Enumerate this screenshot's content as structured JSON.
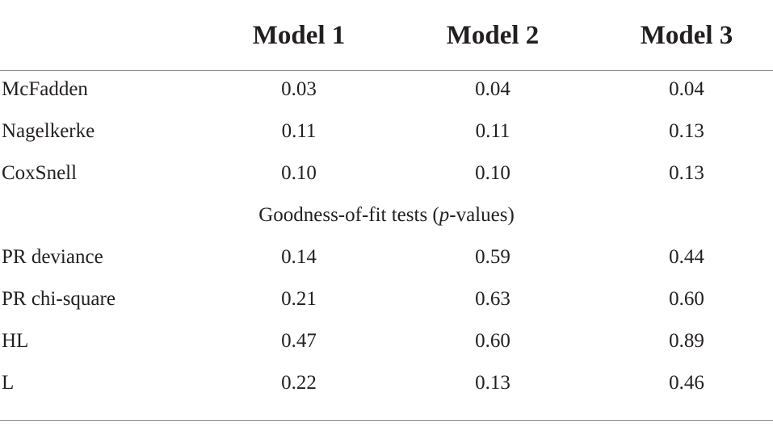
{
  "table": {
    "columns": [
      "Model 1",
      "Model 2",
      "Model 3"
    ],
    "rows_top": [
      {
        "label": "McFadden",
        "values": [
          "0.03",
          "0.04",
          "0.04"
        ]
      },
      {
        "label": "Nagelkerke",
        "values": [
          "0.11",
          "0.11",
          "0.13"
        ]
      },
      {
        "label": "CoxSnell",
        "values": [
          "0.10",
          "0.10",
          "0.13"
        ]
      }
    ],
    "section": {
      "prefix": "Goodness-of-fit tests (",
      "italic": "p",
      "suffix": "-values)"
    },
    "rows_bottom": [
      {
        "label": "PR deviance",
        "values": [
          "0.14",
          "0.59",
          "0.44"
        ]
      },
      {
        "label": "PR chi-square",
        "values": [
          "0.21",
          "0.63",
          "0.60"
        ]
      },
      {
        "label": "HL",
        "values": [
          "0.47",
          "0.60",
          "0.89"
        ]
      },
      {
        "label": "L",
        "values": [
          "0.22",
          "0.13",
          "0.46"
        ]
      }
    ]
  }
}
